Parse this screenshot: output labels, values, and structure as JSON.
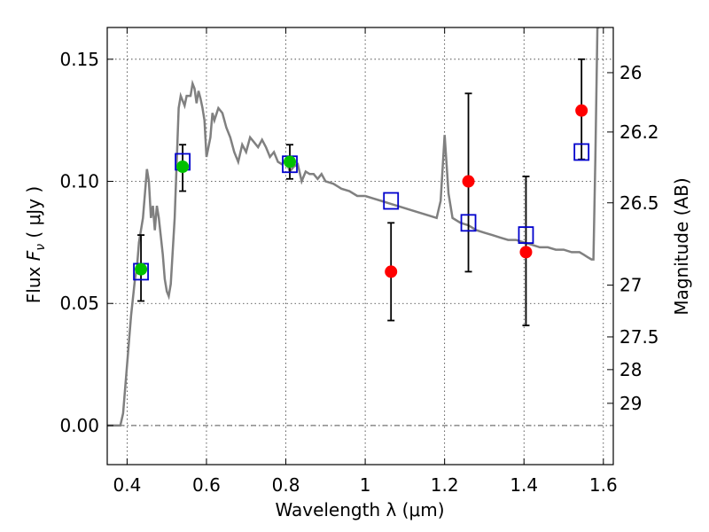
{
  "chart_data": {
    "type": "scatter",
    "xlabel": "Wavelength  λ (μm)",
    "ylabel": "Flux  F_ν  ( μJy )",
    "y2label": "Magnitude (AB)",
    "xlim": [
      0.35,
      1.625
    ],
    "ylim": [
      -0.016,
      0.163
    ],
    "x_ticks": [
      0.4,
      0.6,
      0.8,
      1.0,
      1.2,
      1.4,
      1.6
    ],
    "x_tick_labels": [
      "0.4",
      "0.6",
      "0.8",
      "1",
      "1.2",
      "1.4",
      "1.6"
    ],
    "y_ticks": [
      0.0,
      0.05,
      0.1,
      0.15
    ],
    "y_tick_labels": [
      "0.00",
      "0.05",
      "0.10",
      "0.15"
    ],
    "y2_ticks": [
      {
        "label": "26",
        "flux": 0.1445
      },
      {
        "label": "26.2",
        "flux": 0.1202
      },
      {
        "label": "26.5",
        "flux": 0.0912
      },
      {
        "label": "27",
        "flux": 0.0575
      },
      {
        "label": "27.5",
        "flux": 0.0363
      },
      {
        "label": "28",
        "flux": 0.0229
      },
      {
        "label": "29",
        "flux": 0.0091
      }
    ],
    "grid": true,
    "colors": {
      "model": "#808080",
      "detections": "#00c000",
      "upper_points": "#ff0000",
      "model_photometry": "#0000cc"
    },
    "series": [
      {
        "kind": "model_spectrum",
        "x": [
          0.35,
          0.383,
          0.39,
          0.4,
          0.41,
          0.42,
          0.425,
          0.43,
          0.44,
          0.45,
          0.455,
          0.46,
          0.465,
          0.47,
          0.475,
          0.48,
          0.49,
          0.495,
          0.5,
          0.505,
          0.51,
          0.52,
          0.53,
          0.535,
          0.54,
          0.545,
          0.55,
          0.56,
          0.565,
          0.57,
          0.575,
          0.58,
          0.585,
          0.59,
          0.595,
          0.6,
          0.61,
          0.615,
          0.62,
          0.63,
          0.64,
          0.65,
          0.66,
          0.67,
          0.68,
          0.69,
          0.7,
          0.71,
          0.72,
          0.73,
          0.74,
          0.75,
          0.76,
          0.77,
          0.78,
          0.79,
          0.8,
          0.81,
          0.82,
          0.83,
          0.84,
          0.85,
          0.86,
          0.87,
          0.88,
          0.89,
          0.9,
          0.92,
          0.94,
          0.96,
          0.98,
          1.0,
          1.02,
          1.04,
          1.06,
          1.08,
          1.1,
          1.12,
          1.14,
          1.16,
          1.18,
          1.19,
          1.2,
          1.21,
          1.22,
          1.24,
          1.26,
          1.28,
          1.3,
          1.32,
          1.34,
          1.36,
          1.38,
          1.4,
          1.42,
          1.44,
          1.46,
          1.48,
          1.5,
          1.52,
          1.54,
          1.55,
          1.56,
          1.57,
          1.575,
          1.58,
          1.585,
          1.59
        ],
        "y": [
          0.0,
          0.0,
          0.005,
          0.025,
          0.045,
          0.06,
          0.065,
          0.075,
          0.085,
          0.105,
          0.1,
          0.085,
          0.09,
          0.08,
          0.09,
          0.085,
          0.07,
          0.06,
          0.055,
          0.053,
          0.058,
          0.085,
          0.13,
          0.135,
          0.133,
          0.131,
          0.135,
          0.135,
          0.14,
          0.138,
          0.132,
          0.137,
          0.134,
          0.13,
          0.125,
          0.11,
          0.118,
          0.128,
          0.125,
          0.13,
          0.128,
          0.122,
          0.118,
          0.112,
          0.108,
          0.115,
          0.112,
          0.118,
          0.116,
          0.114,
          0.117,
          0.114,
          0.11,
          0.112,
          0.108,
          0.107,
          0.109,
          0.104,
          0.106,
          0.107,
          0.1,
          0.104,
          0.103,
          0.103,
          0.101,
          0.103,
          0.1,
          0.099,
          0.097,
          0.096,
          0.094,
          0.094,
          0.093,
          0.092,
          0.091,
          0.09,
          0.089,
          0.088,
          0.087,
          0.086,
          0.085,
          0.092,
          0.119,
          0.095,
          0.085,
          0.083,
          0.082,
          0.08,
          0.079,
          0.078,
          0.077,
          0.076,
          0.076,
          0.075,
          0.074,
          0.073,
          0.073,
          0.072,
          0.072,
          0.071,
          0.071,
          0.07,
          0.069,
          0.068,
          0.068,
          0.11,
          0.163,
          0.163
        ]
      },
      {
        "kind": "model_photometry",
        "marker": "open-square",
        "x": [
          0.435,
          0.54,
          0.81,
          1.065,
          1.26,
          1.405,
          1.545
        ],
        "y": [
          0.063,
          0.108,
          0.107,
          0.092,
          0.083,
          0.078,
          0.112
        ]
      },
      {
        "kind": "observed_detections",
        "marker": "filled-circle",
        "x": [
          0.435,
          0.54,
          0.81
        ],
        "y": [
          0.064,
          0.106,
          0.108
        ],
        "yerr_low": [
          0.051,
          0.096,
          0.101
        ],
        "yerr_high": [
          0.078,
          0.115,
          0.115
        ]
      },
      {
        "kind": "observed_nir",
        "marker": "filled-circle",
        "x": [
          1.065,
          1.26,
          1.405,
          1.545
        ],
        "y": [
          0.063,
          0.1,
          0.071,
          0.129
        ],
        "yerr_low": [
          0.043,
          0.063,
          0.041,
          0.109
        ],
        "yerr_high": [
          0.083,
          0.136,
          0.102,
          0.15
        ]
      }
    ]
  }
}
